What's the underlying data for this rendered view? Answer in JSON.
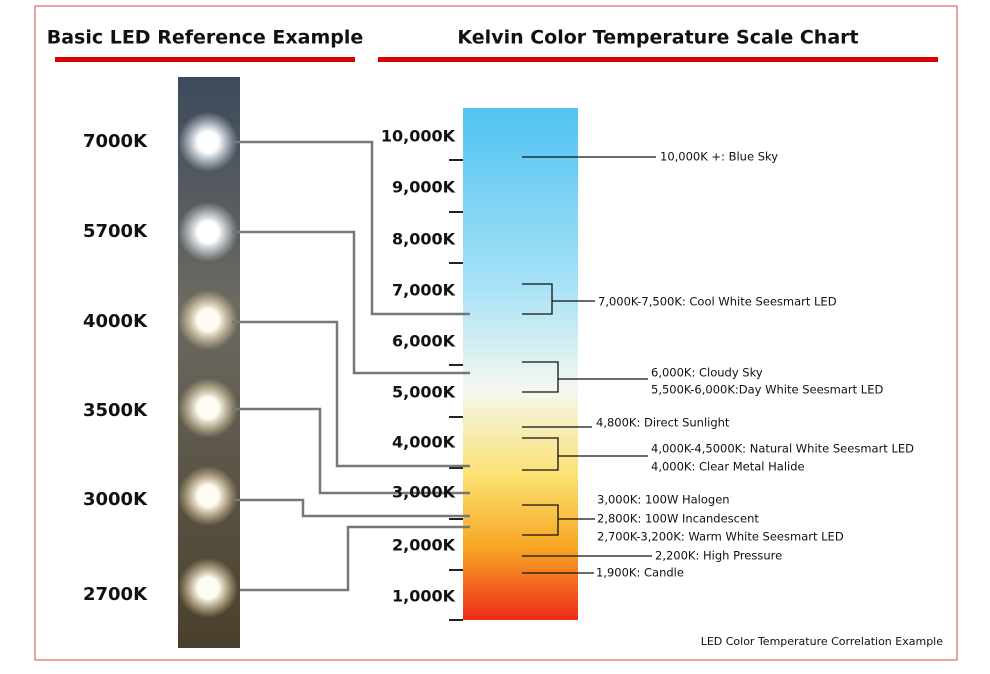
{
  "titles": {
    "led": "Basic LED Reference Example",
    "scale": "Kelvin Color Temperature Scale Chart"
  },
  "led_labels": [
    "7000K",
    "5700K",
    "4000K",
    "3500K",
    "3000K",
    "2700K"
  ],
  "scale_labels": [
    "10,000K",
    "9,000K",
    "8,000K",
    "7,000K",
    "6,000K",
    "5,000K",
    "4,000K",
    "3,000K",
    "2,000K",
    "1,000K"
  ],
  "annotations": [
    "10,000K +: Blue Sky",
    "7,000K-7,500K: Cool White Seesmart LED",
    "6,000K: Cloudy Sky",
    "5,500K-6,000K:Day White Seesmart LED",
    "4,800K: Direct Sunlight",
    "4,000K-4,5000K: Natural White Seesmart LED",
    "4,000K: Clear Metal Halide",
    "3,000K: 100W Halogen",
    "2,800K: 100W Incandescent",
    "2,700K-3,200K: Warm White Seesmart LED",
    "2,200K: High Pressure",
    "1,900K: Candle"
  ],
  "footer": "LED Color Temperature Correlation Example"
}
